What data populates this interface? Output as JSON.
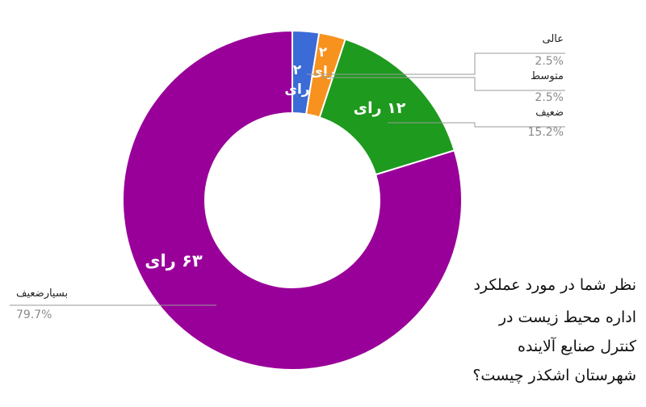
{
  "chart_data": {
    "type": "pie",
    "donut": true,
    "categories": [
      "عالی",
      "متوسط",
      "ضعیف",
      "بسیارضعیف"
    ],
    "values": [
      2,
      2,
      12,
      63
    ],
    "percent_labels": [
      "2.5%",
      "2.5%",
      "15.2%",
      "79.7%"
    ],
    "slice_labels": [
      "۲ رای",
      "۲ رای",
      "۱۲ رای",
      "۶۳ رای"
    ],
    "colors": [
      "#3b6bd6",
      "#f7921e",
      "#1e9a1e",
      "#990099"
    ],
    "legend_placement": "callouts"
  },
  "question_lines": [
    "نظر شما در مورد عملکرد",
    "اداره محیط زیست در",
    "کنترل صنایع آلاینده",
    "شهرستان اشکذر چیست؟"
  ]
}
